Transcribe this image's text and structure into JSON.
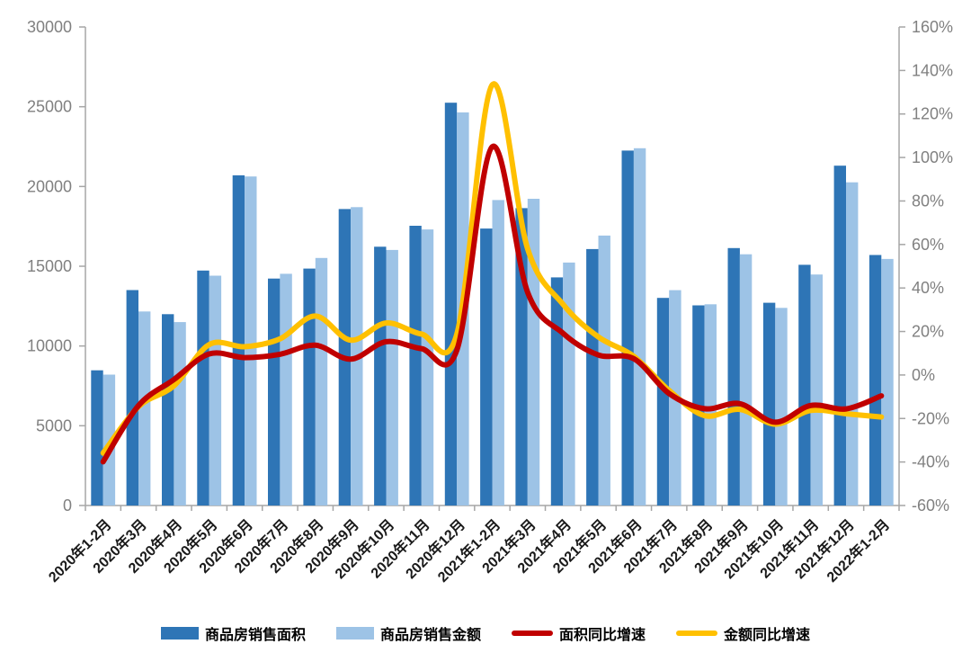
{
  "chart_data": {
    "type": "combo_bar_line",
    "title": "",
    "xlabel": "",
    "ylabel_left": "",
    "ylabel_right": "",
    "grid": false,
    "legend_position": "bottom",
    "categories": [
      "2020年1-2月",
      "2020年3月",
      "2020年4月",
      "2020年5月",
      "2020年6月",
      "2020年7月",
      "2020年8月",
      "2020年9月",
      "2020年10月",
      "2020年11月",
      "2020年12月",
      "2021年1-2月",
      "2021年3月",
      "2021年4月",
      "2021年5月",
      "2021年6月",
      "2021年7月",
      "2021年8月",
      "2021年9月",
      "2021年10月",
      "2021年11月",
      "2021年12月",
      "2022年1-2月"
    ],
    "series": [
      {
        "name": "商品房销售面积",
        "type": "bar",
        "axis": "left",
        "color": "#2E75B6",
        "values": [
          8475,
          13503,
          11995,
          14730,
          20701,
          14227,
          14855,
          18587,
          16221,
          17540,
          25252,
          17363,
          18644,
          14298,
          16078,
          22252,
          13013,
          12545,
          16139,
          12709,
          15090,
          21302,
          15703
        ]
      },
      {
        "name": "商品房销售金额",
        "type": "bar",
        "axis": "left",
        "color": "#9DC3E6",
        "values": [
          8203,
          12162,
          11498,
          14406,
          20626,
          14527,
          15521,
          18704,
          16018,
          17304,
          24644,
          19151,
          19227,
          15231,
          16925,
          22397,
          13499,
          12617,
          15748,
          12390,
          14482,
          20263,
          15459
        ]
      },
      {
        "name": "面积同比增速",
        "type": "line",
        "axis": "right",
        "color": "#C00000",
        "values": [
          -39.9,
          -14.1,
          -2.1,
          9.7,
          8.0,
          9.5,
          13.7,
          7.3,
          15.3,
          12.1,
          11.5,
          104.9,
          38.1,
          19.2,
          9.2,
          7.5,
          -8.5,
          -15.5,
          -13.2,
          -21.7,
          -14.0,
          -15.6,
          -9.6
        ]
      },
      {
        "name": "金额同比增速",
        "type": "line",
        "axis": "right",
        "color": "#FFC000",
        "values": [
          -35.9,
          -14.6,
          -5.0,
          14.0,
          13.0,
          16.6,
          27.1,
          16.0,
          23.9,
          18.8,
          18.9,
          133.4,
          58.1,
          32.5,
          17.5,
          8.6,
          -7.1,
          -18.7,
          -15.8,
          -22.6,
          -16.3,
          -17.8,
          -19.3
        ]
      }
    ],
    "left_axis": {
      "min": 0,
      "max": 30000,
      "step": 5000,
      "tick_labels": [
        "30000",
        "25000",
        "20000",
        "15000",
        "10000",
        "5000",
        "0"
      ]
    },
    "right_axis": {
      "min": -60,
      "max": 160,
      "step": 20,
      "tick_labels": [
        "160%",
        "140%",
        "120%",
        "100%",
        "80%",
        "60%",
        "40%",
        "20%",
        "0%",
        "-20%",
        "-40%",
        "-60%"
      ]
    },
    "colors": {
      "axis_line": "#A6A6A6",
      "axis_tick_text": "#808080",
      "x_tick_text": "#1a1a1a",
      "background": "#ffffff"
    }
  },
  "legend": {
    "items": [
      {
        "label": "商品房销售面积",
        "shape": "bar",
        "color": "#2E75B6"
      },
      {
        "label": "商品房销售金额",
        "shape": "bar",
        "color": "#9DC3E6"
      },
      {
        "label": "面积同比增速",
        "shape": "line",
        "color": "#C00000"
      },
      {
        "label": "金额同比增速",
        "shape": "line",
        "color": "#FFC000"
      }
    ]
  }
}
